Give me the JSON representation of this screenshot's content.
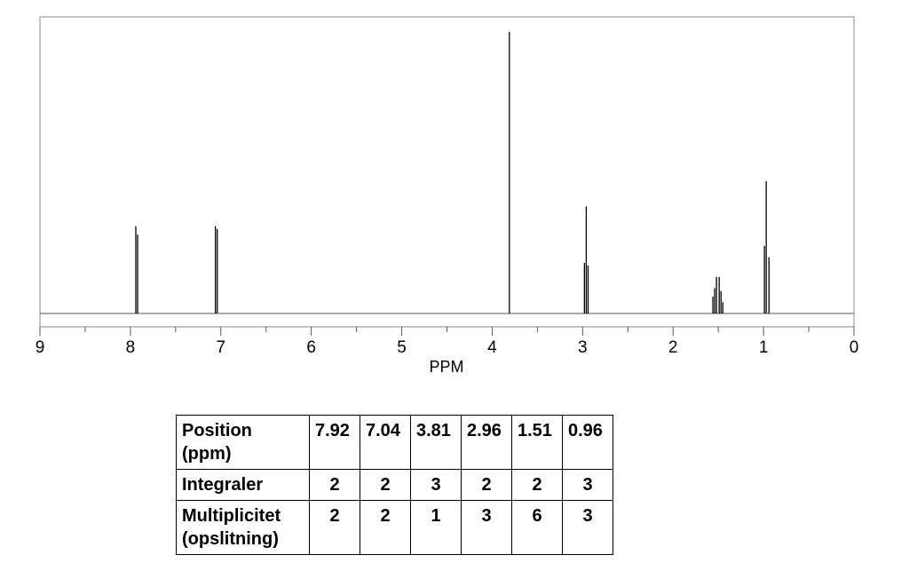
{
  "chart_data": {
    "type": "line",
    "xlabel": "PPM",
    "xlim": [
      9,
      0
    ],
    "x_ticks": [
      "9",
      "8",
      "7",
      "6",
      "5",
      "4",
      "3",
      "2",
      "1",
      "0"
    ],
    "grid": false,
    "peaks": [
      {
        "ppm": 7.94,
        "intensity": 0.31
      },
      {
        "ppm": 7.92,
        "intensity": 0.28
      },
      {
        "ppm": 7.06,
        "intensity": 0.31
      },
      {
        "ppm": 7.04,
        "intensity": 0.3
      },
      {
        "ppm": 3.81,
        "intensity": 1.0
      },
      {
        "ppm": 2.98,
        "intensity": 0.18
      },
      {
        "ppm": 2.96,
        "intensity": 0.38
      },
      {
        "ppm": 2.94,
        "intensity": 0.17
      },
      {
        "ppm": 1.56,
        "intensity": 0.06
      },
      {
        "ppm": 1.54,
        "intensity": 0.09
      },
      {
        "ppm": 1.52,
        "intensity": 0.13
      },
      {
        "ppm": 1.49,
        "intensity": 0.13
      },
      {
        "ppm": 1.47,
        "intensity": 0.08
      },
      {
        "ppm": 1.45,
        "intensity": 0.04
      },
      {
        "ppm": 0.99,
        "intensity": 0.24
      },
      {
        "ppm": 0.97,
        "intensity": 0.47
      },
      {
        "ppm": 0.94,
        "intensity": 0.2
      }
    ]
  },
  "table": {
    "rows": [
      {
        "label": [
          "Position",
          "(ppm)"
        ],
        "values": [
          "7.92",
          "7.04",
          "3.81",
          "2.96",
          "1.51",
          "0.96"
        ]
      },
      {
        "label": [
          "Integraler"
        ],
        "values": [
          "2",
          "2",
          "3",
          "2",
          "2",
          "3"
        ]
      },
      {
        "label": [
          "Multiplicitet",
          "(opslitning)"
        ],
        "values": [
          "2",
          "2",
          "1",
          "3",
          "6",
          "3"
        ]
      }
    ]
  }
}
